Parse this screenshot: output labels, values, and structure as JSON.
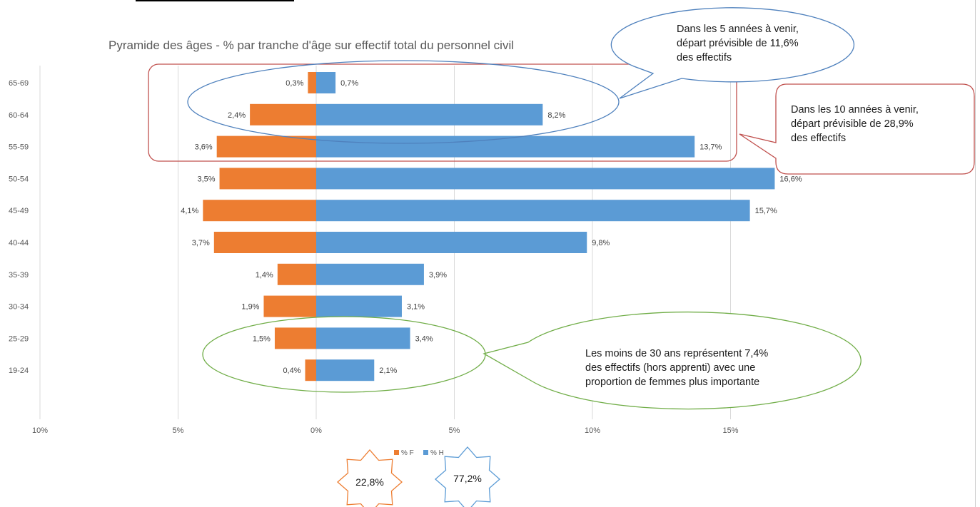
{
  "chart_data": {
    "type": "bar",
    "orientation": "horizontal",
    "title": "Pyramide des âges - % par tranche d'âge sur effectif total du personnel civil",
    "categories": [
      "65-69",
      "60-64",
      "55-59",
      "50-54",
      "45-49",
      "40-44",
      "35-39",
      "30-34",
      "25-29",
      "19-24"
    ],
    "series": [
      {
        "name": "% F",
        "color": "#ED7D31",
        "values": [
          0.3,
          2.4,
          3.6,
          3.5,
          4.1,
          3.7,
          1.4,
          1.9,
          1.5,
          0.4
        ],
        "labels": [
          "0,3%",
          "2,4%",
          "3,6%",
          "3,5%",
          "4,1%",
          "3,7%",
          "1,4%",
          "1,9%",
          "1,5%",
          "0,4%"
        ]
      },
      {
        "name": "% H",
        "color": "#5B9BD5",
        "values": [
          0.7,
          8.2,
          13.7,
          16.6,
          15.7,
          9.8,
          3.9,
          3.1,
          3.4,
          2.1
        ],
        "labels": [
          "0,7%",
          "8,2%",
          "13,7%",
          "16,6%",
          "15,7%",
          "9,8%",
          "3,9%",
          "3,1%",
          "3,4%",
          "2,1%"
        ]
      }
    ],
    "x_ticks": [
      -10,
      -5,
      0,
      5,
      10,
      15
    ],
    "x_tick_labels": [
      "10%",
      "5%",
      "0%",
      "5%",
      "10%",
      "15%"
    ],
    "xlim": [
      -10,
      20
    ],
    "grid": true,
    "legend_position": "bottom"
  },
  "callouts": {
    "five_years": [
      "Dans les 5 années à venir,",
      "départ prévisible de 11,6%",
      "des effectifs"
    ],
    "ten_years": [
      "Dans les 10 années à venir,",
      "départ prévisible de 28,9%",
      "des effectifs"
    ],
    "under_30": [
      "Les moins de 30 ans représentent 7,4%",
      "des effectifs (hors apprenti) avec une",
      "proportion de femmes plus importante"
    ]
  },
  "totals": {
    "female": "22,8%",
    "male": "77,2%"
  },
  "colors": {
    "female": "#ED7D31",
    "male": "#5B9BD5",
    "red_callout": "#C0504D",
    "blue_callout": "#4F81BD",
    "green_callout": "#70AD47"
  }
}
